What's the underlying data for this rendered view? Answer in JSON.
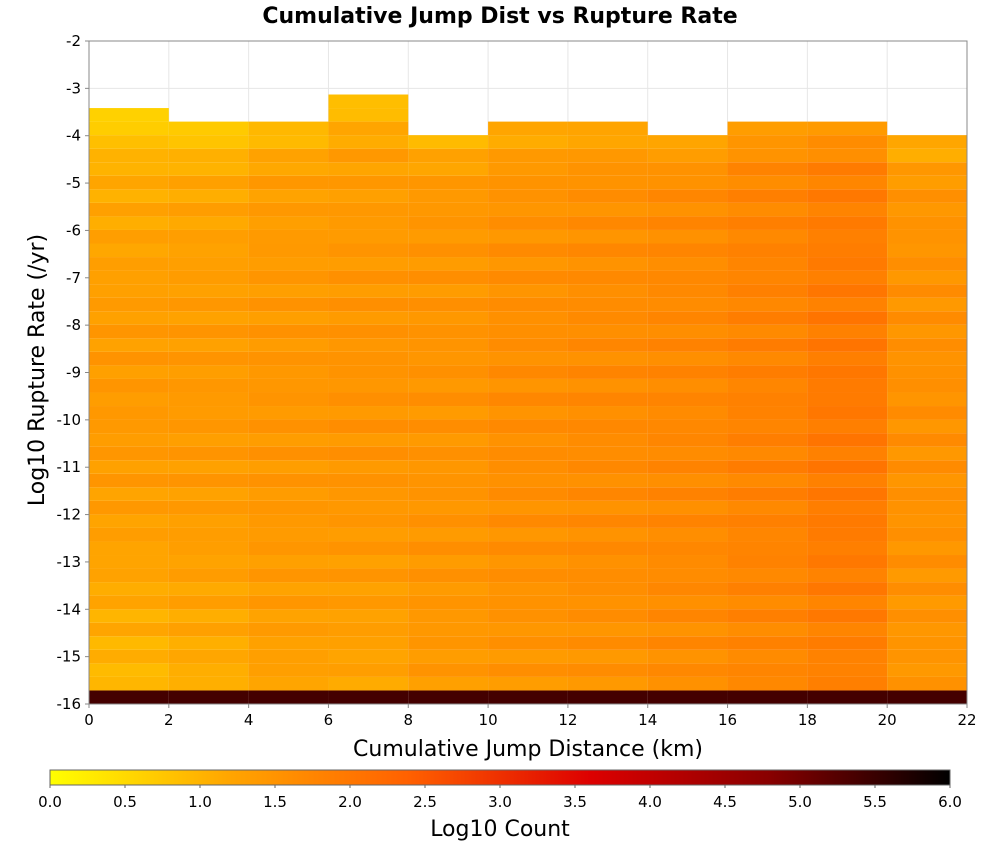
{
  "chart_data": {
    "type": "heatmap",
    "title": "Cumulative Jump Dist vs Rupture Rate",
    "xlabel": "Cumulative Jump Distance (km)",
    "ylabel": "Log10 Rupture Rate (/yr)",
    "xlim": [
      0,
      22
    ],
    "ylim": [
      -16,
      -2
    ],
    "x_ticks": [
      "0",
      "2",
      "4",
      "6",
      "8",
      "10",
      "12",
      "14",
      "16",
      "18",
      "20",
      "22"
    ],
    "y_ticks": [
      "-2",
      "-3",
      "-4",
      "-5",
      "-6",
      "-7",
      "-8",
      "-9",
      "-10",
      "-11",
      "-12",
      "-13",
      "-14",
      "-15",
      "-16"
    ],
    "x_bin_width": 2,
    "y_bin_width": 0.286,
    "colorbar": {
      "label": "Log10 Count",
      "range": [
        0.0,
        6.0
      ],
      "ticks": [
        "0.0",
        "0.5",
        "1.0",
        "1.5",
        "2.0",
        "2.5",
        "3.0",
        "3.5",
        "4.0",
        "4.5",
        "5.0",
        "5.5",
        "6.0"
      ],
      "colormap": [
        "#ffff00",
        "#ffa500",
        "#ff6000",
        "#dd0000",
        "#880000",
        "#000000"
      ]
    },
    "columns": [
      {
        "x_start": 0,
        "top_y": -3.3,
        "mean": 0.9,
        "peak": 1.4,
        "bottom_value": 5.4
      },
      {
        "x_start": 2,
        "top_y": -3.6,
        "mean": 1.05,
        "peak": 1.4,
        "bottom_value": 5.4
      },
      {
        "x_start": 4,
        "top_y": -3.6,
        "mean": 1.25,
        "peak": 1.45,
        "bottom_value": 5.4
      },
      {
        "x_start": 6,
        "top_y": -3.0,
        "mean": 1.2,
        "peak": 1.5,
        "bottom_value": 5.4
      },
      {
        "x_start": 8,
        "top_y": -3.9,
        "mean": 1.4,
        "peak": 1.5,
        "bottom_value": 5.4
      },
      {
        "x_start": 10,
        "top_y": -3.6,
        "mean": 1.45,
        "peak": 1.6,
        "bottom_value": 5.4
      },
      {
        "x_start": 12,
        "top_y": -3.6,
        "mean": 1.5,
        "peak": 1.65,
        "bottom_value": 5.4
      },
      {
        "x_start": 14,
        "top_y": -3.9,
        "mean": 1.6,
        "peak": 1.7,
        "bottom_value": 5.4
      },
      {
        "x_start": 16,
        "top_y": -3.6,
        "mean": 1.7,
        "peak": 1.8,
        "bottom_value": 5.4
      },
      {
        "x_start": 18,
        "top_y": -3.6,
        "mean": 1.8,
        "peak": 1.95,
        "bottom_value": 5.4
      },
      {
        "x_start": 20,
        "top_y": -3.9,
        "mean": 1.45,
        "peak": 1.55,
        "bottom_value": 5.4
      }
    ],
    "grid": true,
    "colorbar_placement": "bottom"
  }
}
